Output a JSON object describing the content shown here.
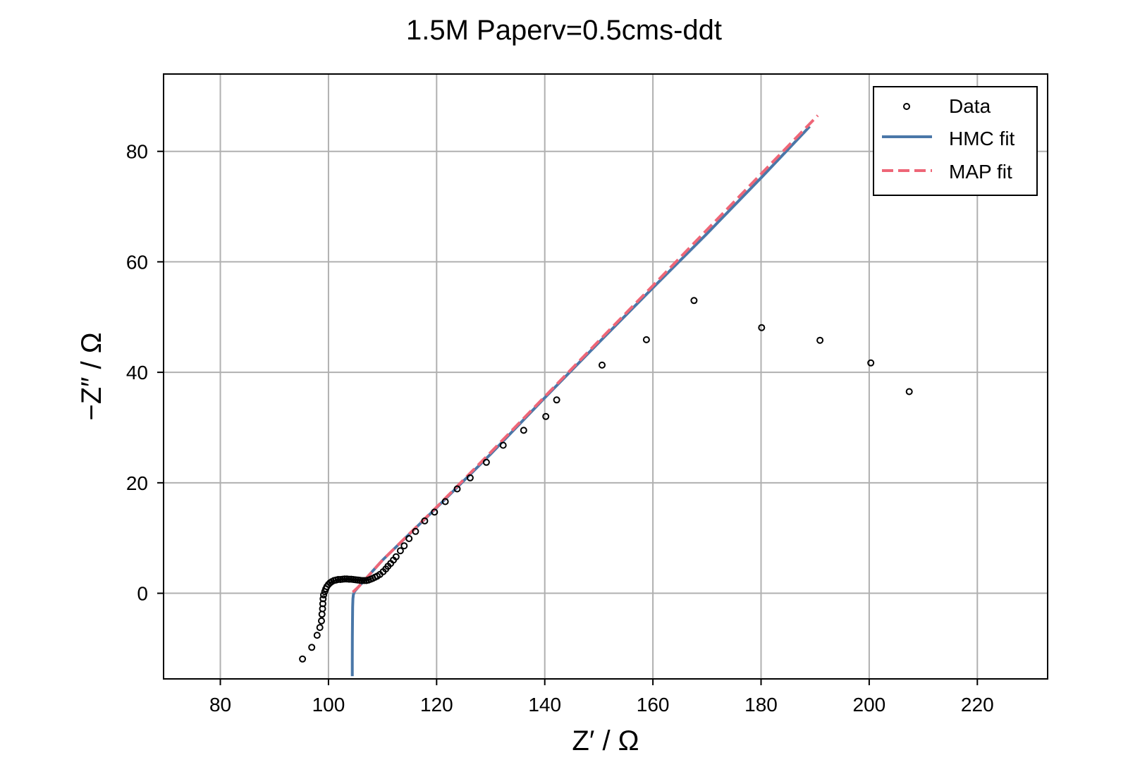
{
  "chart_data": {
    "type": "scatter",
    "title": "1.5M Paperv=0.5cms-ddt",
    "xlabel": "Z′ / Ω",
    "ylabel": "−Z″ / Ω",
    "xlim": [
      69.5,
      233
    ],
    "ylim": [
      -15.5,
      94
    ],
    "xticks": [
      80,
      100,
      120,
      140,
      160,
      180,
      200,
      220
    ],
    "yticks": [
      0,
      20,
      40,
      60,
      80
    ],
    "grid": true,
    "legend_position": "top-right",
    "colors": {
      "data": "#000000",
      "hmc": "#4a77a8",
      "map": "#ee6677",
      "grid": "#b0b0b0"
    },
    "series": [
      {
        "name": "Data",
        "kind": "scatter",
        "points": [
          [
            95.2,
            -11.9
          ],
          [
            96.9,
            -9.8
          ],
          [
            97.9,
            -7.6
          ],
          [
            98.4,
            -6.2
          ],
          [
            98.7,
            -5.0
          ],
          [
            98.8,
            -3.8
          ],
          [
            98.9,
            -2.8
          ],
          [
            98.95,
            -1.9
          ],
          [
            99.0,
            -1.0
          ],
          [
            99.1,
            -0.3
          ],
          [
            99.3,
            0.3
          ],
          [
            99.5,
            0.8
          ],
          [
            99.7,
            1.2
          ],
          [
            100.0,
            1.6
          ],
          [
            100.3,
            1.9
          ],
          [
            100.6,
            2.1
          ],
          [
            101.0,
            2.3
          ],
          [
            101.4,
            2.4
          ],
          [
            101.8,
            2.5
          ],
          [
            102.2,
            2.5
          ],
          [
            102.6,
            2.55
          ],
          [
            103.0,
            2.6
          ],
          [
            103.4,
            2.6
          ],
          [
            103.8,
            2.55
          ],
          [
            104.2,
            2.55
          ],
          [
            104.6,
            2.5
          ],
          [
            105.0,
            2.45
          ],
          [
            105.4,
            2.4
          ],
          [
            105.8,
            2.35
          ],
          [
            106.2,
            2.3
          ],
          [
            106.6,
            2.3
          ],
          [
            107.0,
            2.3
          ],
          [
            107.4,
            2.4
          ],
          [
            107.8,
            2.55
          ],
          [
            108.2,
            2.7
          ],
          [
            108.6,
            2.9
          ],
          [
            109.0,
            3.1
          ],
          [
            109.5,
            3.4
          ],
          [
            110.1,
            3.9
          ],
          [
            110.6,
            4.4
          ],
          [
            111.0,
            4.9
          ],
          [
            111.5,
            5.4
          ],
          [
            112.0,
            6.0
          ],
          [
            112.5,
            6.6
          ],
          [
            113.3,
            7.7
          ],
          [
            114.0,
            8.6
          ],
          [
            114.9,
            9.9
          ],
          [
            116.1,
            11.2
          ],
          [
            117.8,
            13.1
          ],
          [
            119.6,
            14.7
          ],
          [
            121.6,
            16.6
          ],
          [
            123.8,
            18.9
          ],
          [
            126.2,
            20.9
          ],
          [
            129.2,
            23.7
          ],
          [
            132.3,
            26.8
          ],
          [
            136.1,
            29.5
          ],
          [
            140.2,
            32.0
          ],
          [
            142.2,
            35.0
          ],
          [
            150.6,
            41.3
          ],
          [
            158.8,
            45.9
          ],
          [
            167.6,
            53.0
          ],
          [
            180.1,
            48.1
          ],
          [
            190.9,
            45.8
          ],
          [
            200.3,
            41.7
          ],
          [
            207.4,
            36.5
          ]
        ]
      },
      {
        "name": "HMC fit",
        "kind": "line",
        "points": [
          [
            104.4,
            -15.0
          ],
          [
            104.4,
            -12.0
          ],
          [
            104.42,
            -8.0
          ],
          [
            104.44,
            -5.0
          ],
          [
            104.47,
            -2.5
          ],
          [
            104.52,
            -1.0
          ],
          [
            104.6,
            -0.3
          ],
          [
            104.8,
            0.3
          ],
          [
            105.5,
            1.1
          ],
          [
            110.0,
            6.0
          ],
          [
            120.0,
            15.5
          ],
          [
            130.0,
            25.2
          ],
          [
            140.0,
            35.4
          ],
          [
            150.0,
            45.4
          ],
          [
            160.0,
            55.3
          ],
          [
            170.0,
            65.1
          ],
          [
            180.0,
            75.2
          ],
          [
            189.0,
            84.5
          ]
        ]
      },
      {
        "name": "MAP fit",
        "kind": "dashed",
        "points": [
          [
            104.5,
            0.2
          ],
          [
            105.5,
            1.1
          ],
          [
            110.0,
            6.0
          ],
          [
            120.0,
            15.6
          ],
          [
            130.0,
            25.5
          ],
          [
            140.0,
            35.6
          ],
          [
            150.0,
            45.7
          ],
          [
            160.0,
            55.7
          ],
          [
            170.0,
            65.8
          ],
          [
            180.0,
            75.9
          ],
          [
            190.5,
            86.5
          ]
        ]
      }
    ]
  }
}
